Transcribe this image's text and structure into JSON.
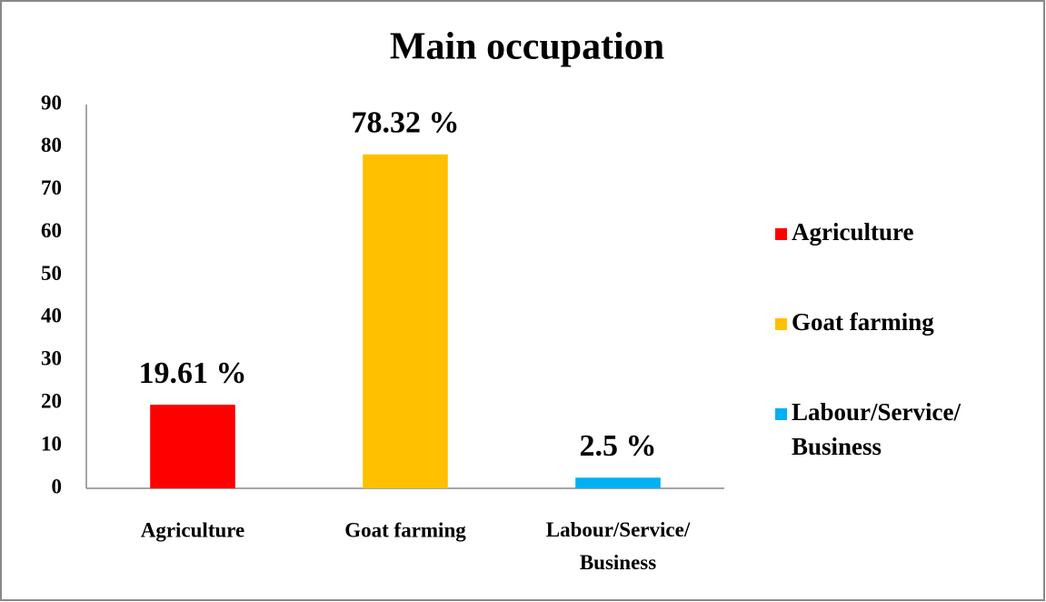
{
  "chart_data": {
    "type": "bar",
    "title": "Main occupation",
    "categories": [
      "Agriculture",
      "Goat farming",
      "Labour/Service/ Business"
    ],
    "values": [
      19.61,
      78.32,
      2.5
    ],
    "value_labels": [
      "19.61 %",
      "78.32 %",
      "2.5 %"
    ],
    "colors": [
      "#ff0000",
      "#ffc000",
      "#00b0f0"
    ],
    "ylim": [
      0,
      90
    ],
    "yticks": [
      0,
      10,
      20,
      30,
      40,
      50,
      60,
      70,
      80,
      90
    ],
    "grid": false,
    "legend": "right"
  }
}
